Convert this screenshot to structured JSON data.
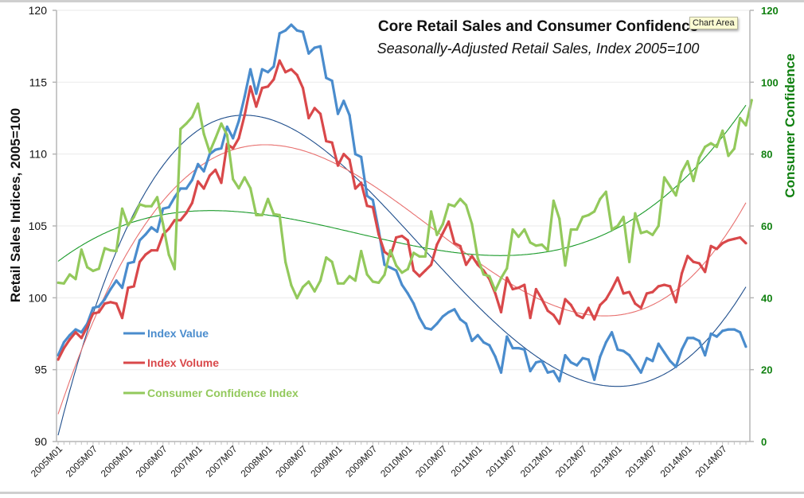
{
  "tooltip": "Chart Area",
  "chart_data": {
    "type": "line",
    "title": "Core Retail Sales and Consumer Confidence",
    "subtitle": "Seasonally-Adjusted Retail Sales, Index 2005=100",
    "ylabel": "Retail Sales  Indices, 2005=100",
    "y2label": "Consumer Confidence",
    "ylim": [
      90,
      120
    ],
    "y2lim": [
      0,
      120
    ],
    "yticks": [
      90,
      95,
      100,
      105,
      110,
      115,
      120
    ],
    "y2ticks": [
      0,
      20,
      40,
      60,
      80,
      100,
      120
    ],
    "grid": true,
    "legend_position": "lower-left",
    "x_start": "2005M01",
    "x_end": "2014M09",
    "xtick_labels": [
      "2005M01",
      "2005M07",
      "2006M01",
      "2006M07",
      "2007M01",
      "2007M07",
      "2008M01",
      "2008M07",
      "2009M01",
      "2009M07",
      "2010M01",
      "2010M07",
      "2011M01",
      "2011M07",
      "2012M01",
      "2012M07",
      "2013M01",
      "2013M07",
      "2014M01",
      "2014M07"
    ],
    "colors": {
      "value": "#4a8ccd",
      "volume": "#d9484a",
      "confidence": "#93c95c",
      "right_axis": "#108010",
      "value_trend": "#1f4e8c",
      "volume_trend": "#e8706f",
      "confidence_trend": "#1a9a2a"
    },
    "series": [
      {
        "name": "Index Value",
        "axis": "left",
        "trendline": true,
        "values": [
          96.0,
          96.9,
          97.4,
          97.8,
          97.6,
          98.2,
          99.3,
          99.4,
          99.9,
          100.6,
          101.2,
          100.7,
          102.4,
          102.5,
          104.0,
          104.4,
          104.9,
          104.6,
          106.2,
          106.3,
          107.0,
          107.6,
          107.6,
          108.2,
          109.3,
          108.8,
          110.0,
          110.3,
          110.4,
          111.9,
          111.1,
          112.3,
          114.0,
          115.9,
          114.2,
          115.9,
          115.7,
          116.1,
          118.4,
          118.6,
          119.0,
          118.6,
          118.5,
          117.0,
          117.4,
          117.5,
          115.3,
          115.1,
          112.8,
          113.7,
          112.7,
          110.0,
          109.8,
          107.1,
          106.8,
          104.7,
          102.3,
          102.1,
          101.9,
          100.9,
          100.3,
          99.6,
          98.6,
          97.9,
          97.8,
          98.2,
          98.7,
          99.0,
          99.2,
          98.5,
          98.2,
          97.0,
          97.4,
          96.9,
          96.7,
          95.9,
          94.8,
          97.3,
          96.5,
          96.5,
          96.4,
          94.9,
          95.5,
          95.6,
          94.8,
          94.9,
          94.2,
          96.0,
          95.5,
          95.3,
          95.8,
          95.7,
          94.3,
          95.9,
          96.9,
          97.6,
          96.4,
          96.3,
          96.0,
          95.4,
          94.8,
          95.8,
          95.6,
          96.8,
          96.2,
          95.6,
          95.2,
          96.4,
          97.2,
          97.2,
          97.0,
          96.0,
          97.5,
          97.3,
          97.7,
          97.8,
          97.8,
          97.6,
          96.6
        ]
      },
      {
        "name": "Index Volume",
        "axis": "left",
        "trendline": true,
        "values": [
          95.7,
          96.5,
          97.1,
          97.6,
          97.2,
          98.0,
          98.9,
          99.0,
          99.6,
          99.7,
          99.6,
          98.6,
          100.7,
          100.8,
          102.5,
          103.0,
          103.3,
          103.3,
          104.4,
          104.8,
          105.4,
          105.4,
          105.9,
          106.6,
          108.1,
          107.6,
          108.5,
          108.9,
          108.0,
          110.7,
          110.4,
          111.1,
          112.7,
          114.7,
          113.3,
          114.6,
          114.7,
          115.2,
          116.5,
          115.7,
          115.9,
          115.5,
          114.6,
          112.5,
          113.2,
          112.8,
          110.9,
          110.8,
          109.2,
          110.0,
          109.6,
          107.6,
          108.0,
          106.4,
          106.3,
          104.4,
          103.2,
          102.9,
          104.2,
          104.3,
          104.0,
          101.9,
          101.5,
          101.9,
          102.3,
          103.7,
          104.5,
          105.3,
          103.8,
          103.6,
          102.3,
          102.9,
          102.3,
          101.9,
          101.3,
          100.3,
          99.0,
          101.4,
          100.6,
          100.7,
          100.9,
          98.6,
          100.6,
          99.9,
          99.1,
          98.8,
          98.2,
          99.9,
          99.5,
          98.8,
          98.6,
          99.3,
          98.5,
          99.5,
          99.9,
          100.6,
          101.4,
          100.3,
          100.4,
          99.6,
          99.3,
          100.3,
          100.4,
          100.8,
          100.9,
          100.8,
          99.7,
          101.7,
          102.9,
          102.5,
          102.4,
          101.8,
          103.6,
          103.4,
          103.8,
          104.0,
          104.1,
          104.2,
          103.8
        ]
      },
      {
        "name": "Consumer Confidence Index",
        "axis": "right",
        "trendline": true,
        "values": [
          44.2,
          44.0,
          46.5,
          45.2,
          53.4,
          48.5,
          47.5,
          48.1,
          53.8,
          53.2,
          53.0,
          64.8,
          60.2,
          62.5,
          66.0,
          65.5,
          65.5,
          68.0,
          60.5,
          52.0,
          48.0,
          87.0,
          88.5,
          90.3,
          94.0,
          85.6,
          80.6,
          84.4,
          88.5,
          85.3,
          73.0,
          70.5,
          73.5,
          70.5,
          63.0,
          63.0,
          67.5,
          63.3,
          63.0,
          50.0,
          43.5,
          39.9,
          43.0,
          44.5,
          41.8,
          44.8,
          51.2,
          50.0,
          44.0,
          44.0,
          46.0,
          44.8,
          53.0,
          46.5,
          44.5,
          44.2,
          46.4,
          53.2,
          49.0,
          47.0,
          48.0,
          52.5,
          51.5,
          51.5,
          64.0,
          57.5,
          60.5,
          66.0,
          65.5,
          67.5,
          65.8,
          60.5,
          51.0,
          46.5,
          46.0,
          42.0,
          45.5,
          48.2,
          59.0,
          57.0,
          59.0,
          55.4,
          54.5,
          54.8,
          53.2,
          67.0,
          62.0,
          49.0,
          59.0,
          59.0,
          62.5,
          63.0,
          64.0,
          67.5,
          69.5,
          59.0,
          60.0,
          62.5,
          50.0,
          63.5,
          58.0,
          58.5,
          57.5,
          60.0,
          73.5,
          71.0,
          68.5,
          75.0,
          78.0,
          72.5,
          79.0,
          82.0,
          83.0,
          82.0,
          86.5,
          79.5,
          81.5,
          90.0,
          88.0,
          95.0
        ]
      }
    ]
  }
}
